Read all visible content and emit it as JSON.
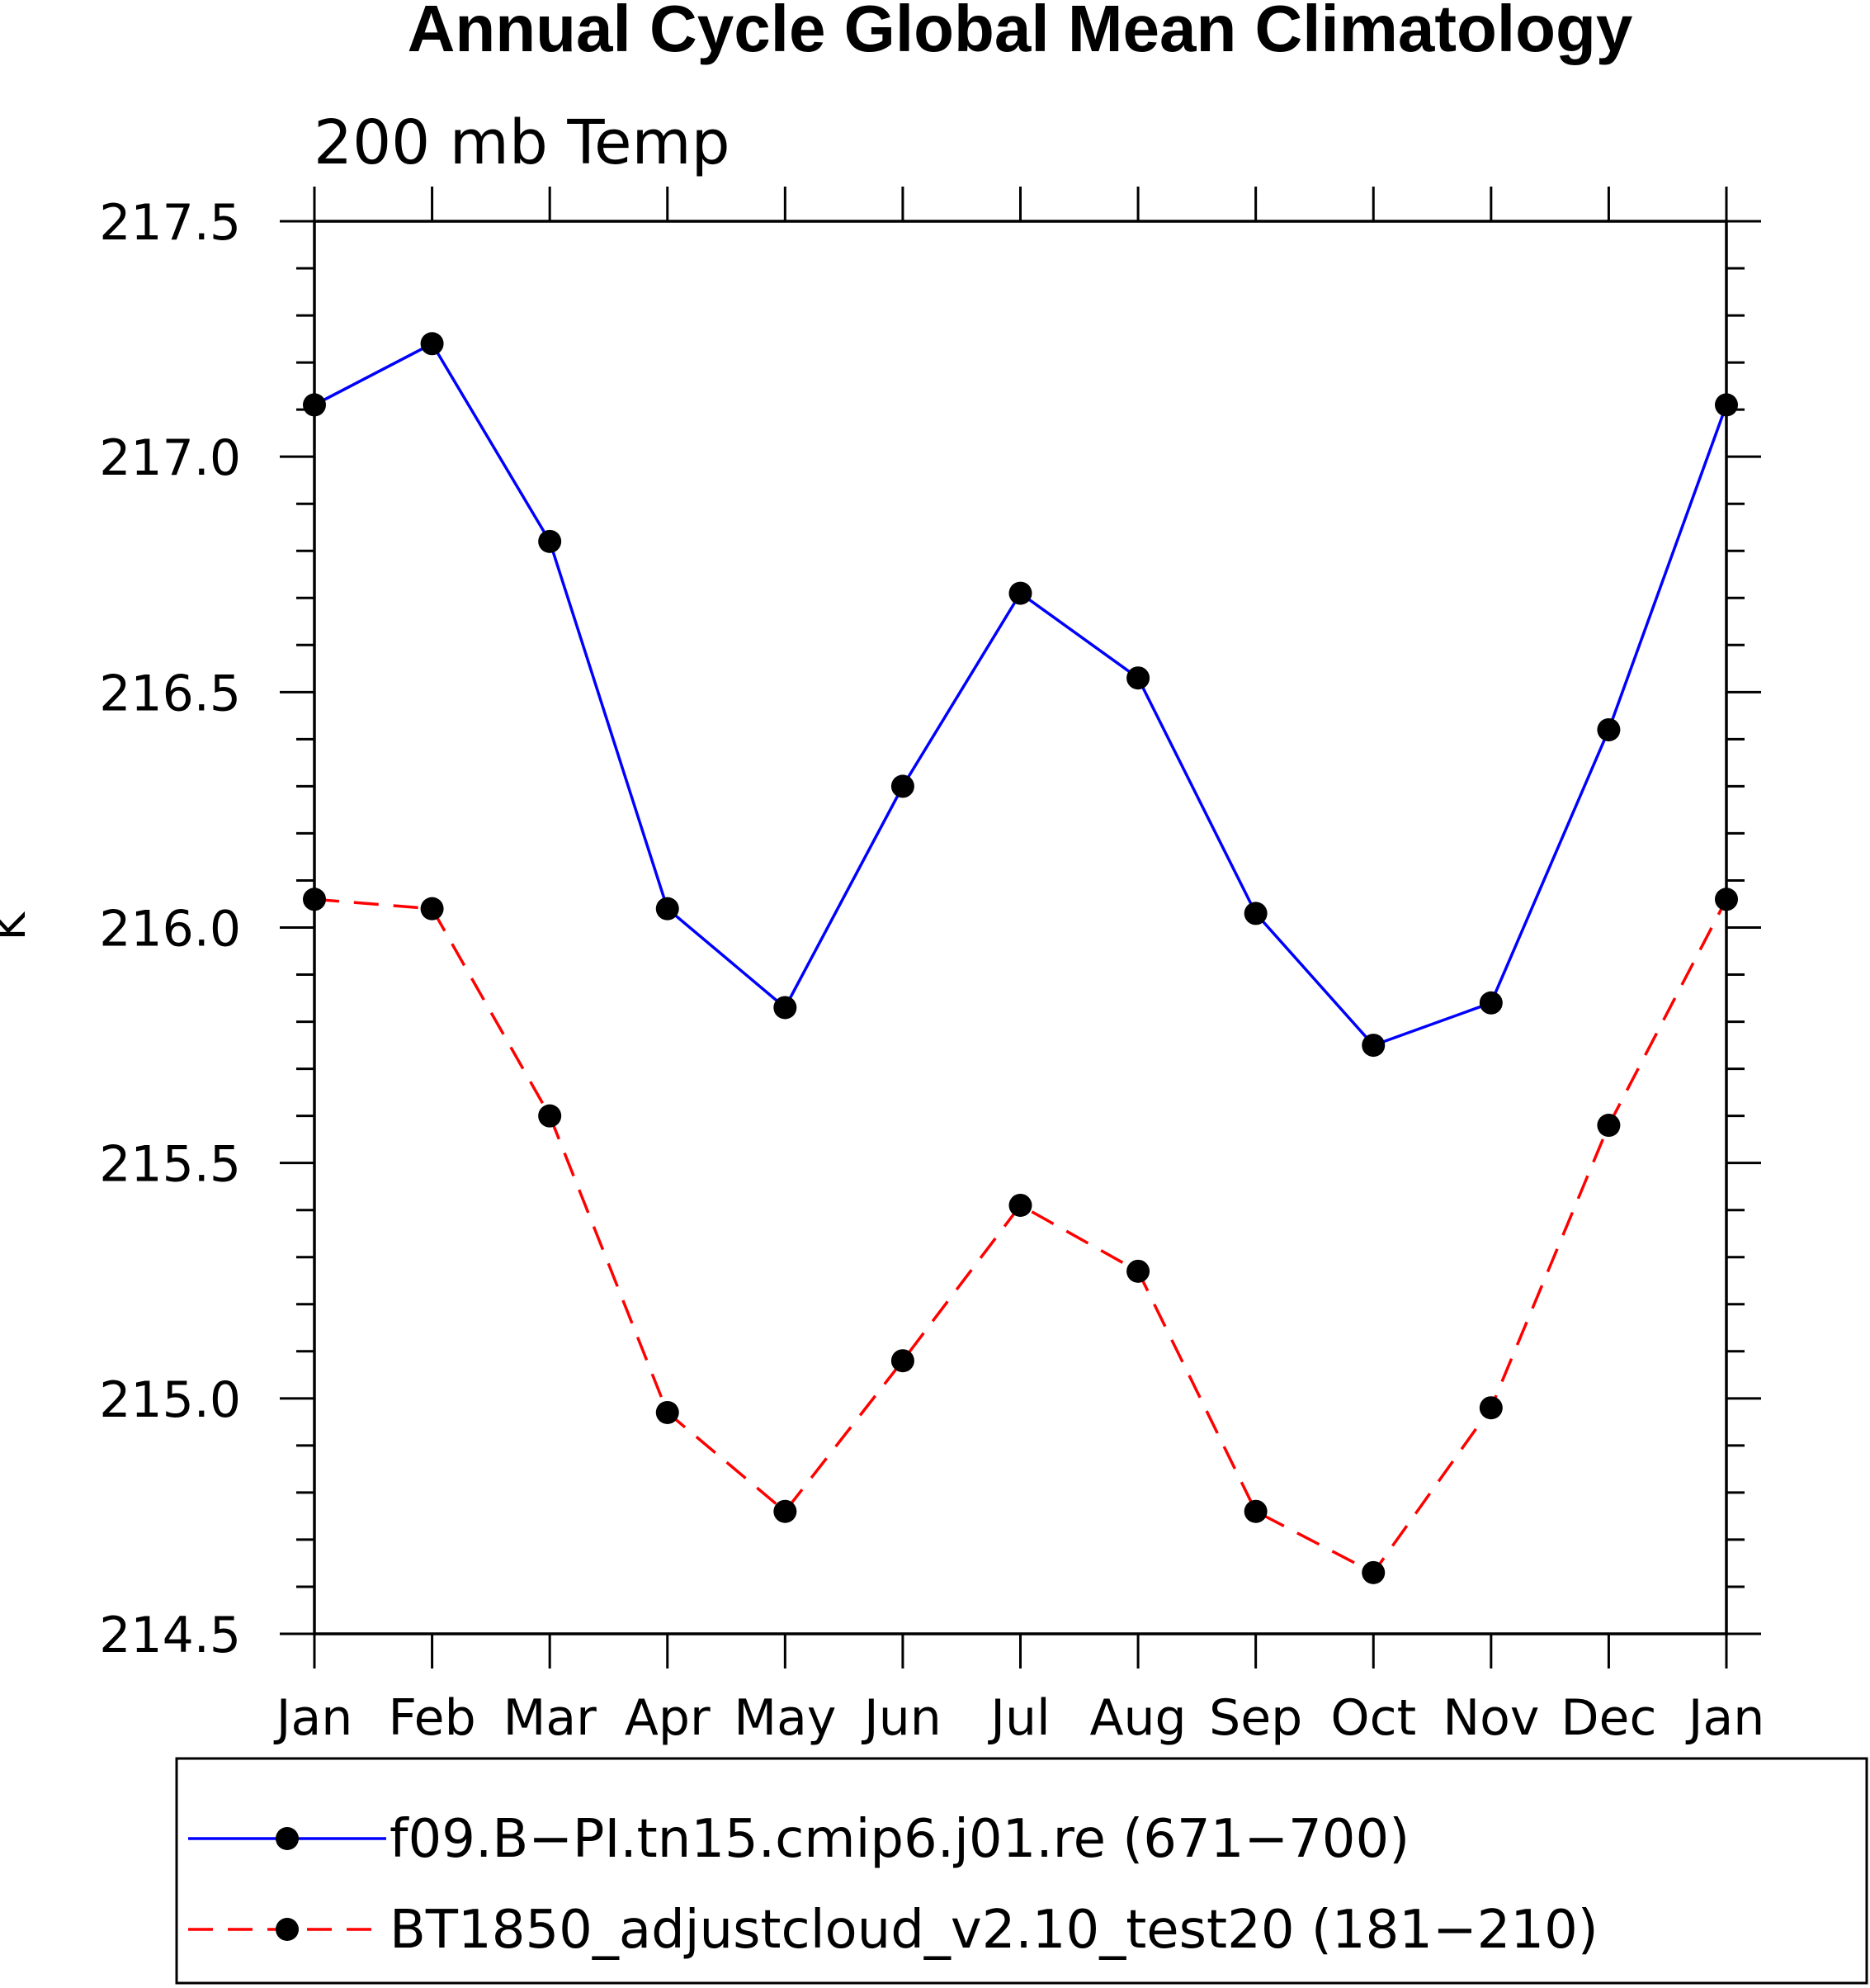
{
  "chart_data": {
    "type": "line",
    "title": "Annual Cycle Global Mean Climatology",
    "subtitle": "200 mb Temp",
    "ylabel": "K",
    "xlabel": "",
    "ylim": [
      214.5,
      217.5
    ],
    "yticks": [
      "214.5",
      "215.0",
      "215.5",
      "216.0",
      "216.5",
      "217.0",
      "217.5"
    ],
    "yminor_step": 0.1,
    "categories": [
      "Jan",
      "Feb",
      "Mar",
      "Apr",
      "May",
      "Jun",
      "Jul",
      "Aug",
      "Sep",
      "Oct",
      "Nov",
      "Dec",
      "Jan"
    ],
    "series": [
      {
        "name": "f09.B-PI.tn15.cmip6.j01.re (671-700)",
        "legend_label": "f09.B−PI.tn15.cmip6.j01.re (671−700)",
        "color": "#0000ff",
        "dash": "solid",
        "values": [
          217.11,
          217.24,
          216.82,
          216.04,
          215.83,
          216.3,
          216.71,
          216.53,
          216.03,
          215.75,
          215.84,
          216.42,
          217.11
        ]
      },
      {
        "name": "BT1850_adjustcloud_v2.10_test20 (181-210)",
        "legend_label": "BT1850_adjustcloud_v2.10_test20 (181−210)",
        "color": "#ff0000",
        "dash": "dashed",
        "values": [
          216.06,
          216.04,
          215.6,
          214.97,
          214.76,
          215.08,
          215.41,
          215.27,
          214.76,
          214.63,
          214.98,
          215.58,
          216.06
        ]
      }
    ],
    "marker_color": "#000000",
    "legend_position": "bottom"
  }
}
